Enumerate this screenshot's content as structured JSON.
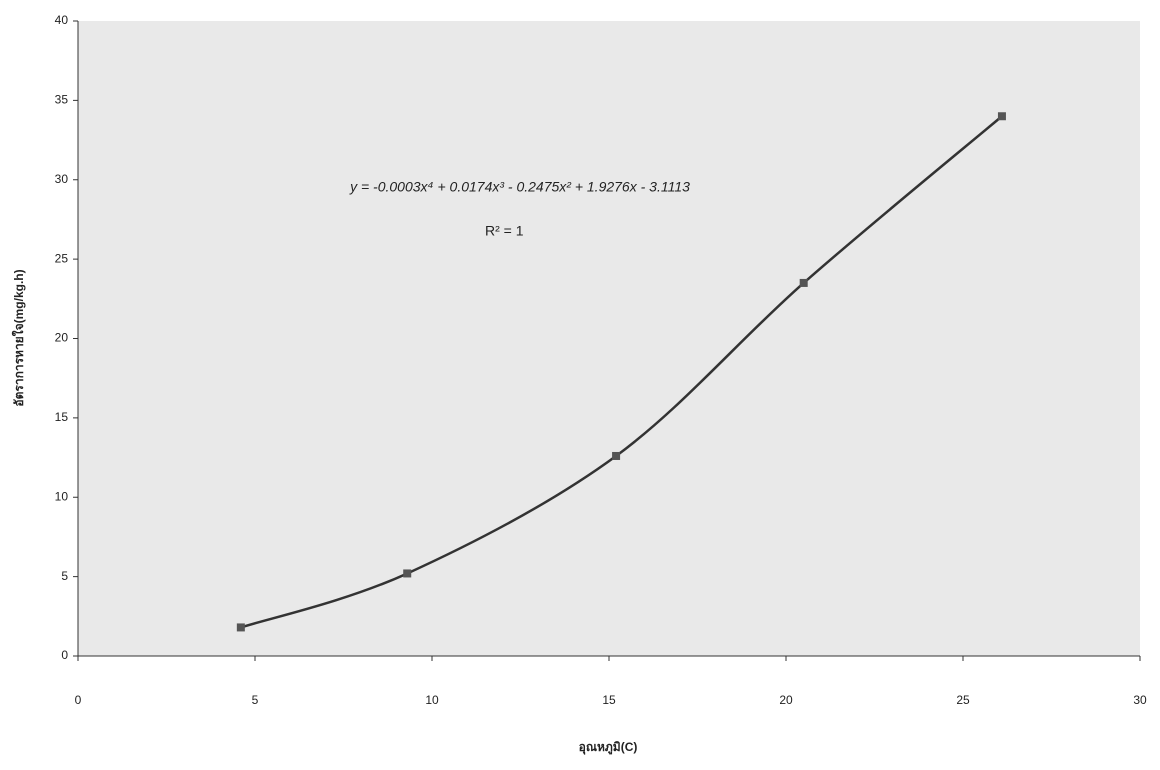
{
  "chart_data": {
    "type": "line",
    "x_label": "อุณหภูมิ(C)",
    "y_label": "อัตราการหายใจ(mg/kg.h)",
    "equation": "y = -0.0003x⁴ + 0.0174x³ - 0.2475x² + 1.9276x - 3.1113",
    "r_squared": "R² = 1",
    "x": [
      4.6,
      9.3,
      15.2,
      20.5,
      26.1
    ],
    "series": [
      {
        "color": "#333333",
        "marker_color": "#555555",
        "values": [
          1.8,
          5.2,
          12.6,
          23.5,
          34.0
        ]
      }
    ],
    "xlim": [
      0,
      30
    ],
    "xticks": [
      0,
      5,
      10,
      15,
      20,
      25,
      30
    ],
    "ylim": [
      0,
      40
    ],
    "yticks": [
      0,
      5,
      10,
      15,
      20,
      25,
      30,
      35,
      40
    ],
    "grid": false
  }
}
